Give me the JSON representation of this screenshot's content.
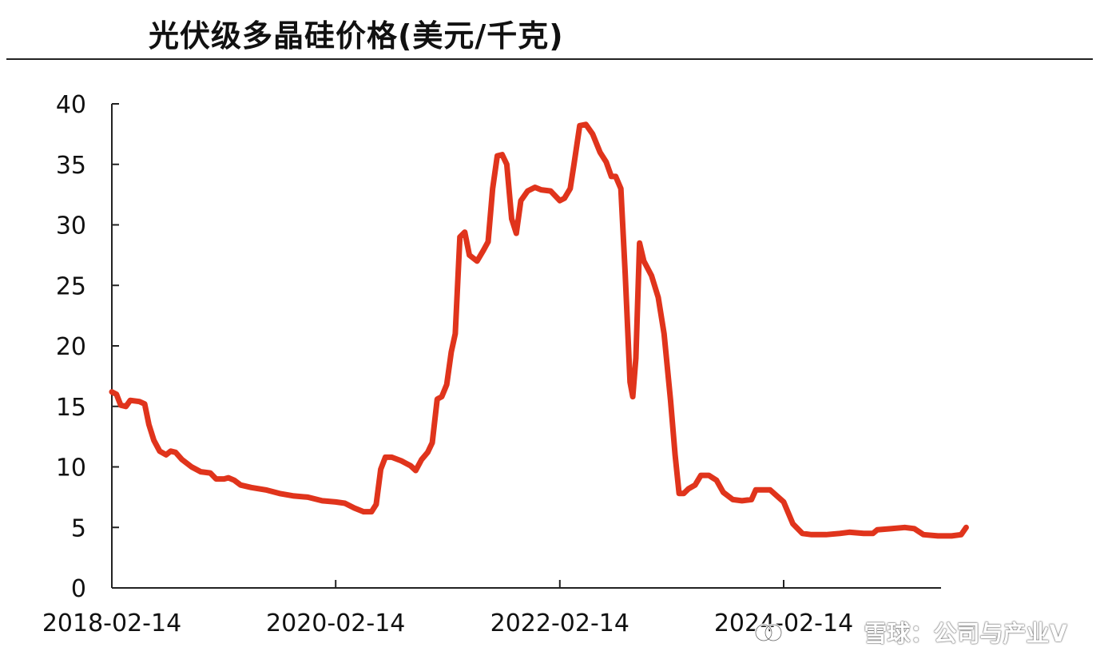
{
  "chart_data": {
    "type": "line",
    "title": "光伏级多晶硅价格(美元/千克)",
    "xlabel": "",
    "ylabel": "",
    "xlim": [
      "2018-02-14",
      "2025-10-01"
    ],
    "ylim": [
      0,
      40
    ],
    "y_ticks": [
      0,
      5,
      10,
      15,
      20,
      25,
      30,
      35,
      40
    ],
    "x_ticks": [
      "2018-02-14",
      "2020-02-14",
      "2022-02-14",
      "2024-02-14"
    ],
    "grid": false,
    "legend": "none",
    "color": "#e0341c",
    "series": [
      {
        "name": "",
        "points": [
          [
            "2018-02-14",
            16.2
          ],
          [
            "2018-03-01",
            16.0
          ],
          [
            "2018-03-15",
            15.1
          ],
          [
            "2018-04-01",
            15.0
          ],
          [
            "2018-04-15",
            15.5
          ],
          [
            "2018-05-15",
            15.4
          ],
          [
            "2018-06-01",
            15.2
          ],
          [
            "2018-06-15",
            13.5
          ],
          [
            "2018-07-01",
            12.2
          ],
          [
            "2018-07-20",
            11.3
          ],
          [
            "2018-08-10",
            11.0
          ],
          [
            "2018-08-25",
            11.3
          ],
          [
            "2018-09-10",
            11.2
          ],
          [
            "2018-10-01",
            10.6
          ],
          [
            "2018-11-01",
            10.0
          ],
          [
            "2018-12-01",
            9.6
          ],
          [
            "2019-01-01",
            9.5
          ],
          [
            "2019-01-20",
            9.0
          ],
          [
            "2019-02-15",
            9.0
          ],
          [
            "2019-03-01",
            9.1
          ],
          [
            "2019-03-20",
            8.9
          ],
          [
            "2019-04-10",
            8.5
          ],
          [
            "2019-05-15",
            8.3
          ],
          [
            "2019-07-01",
            8.1
          ],
          [
            "2019-08-15",
            7.8
          ],
          [
            "2019-10-01",
            7.6
          ],
          [
            "2019-11-15",
            7.5
          ],
          [
            "2020-01-01",
            7.2
          ],
          [
            "2020-02-14",
            7.1
          ],
          [
            "2020-03-15",
            7.0
          ],
          [
            "2020-04-15",
            6.6
          ],
          [
            "2020-05-15",
            6.3
          ],
          [
            "2020-06-10",
            6.3
          ],
          [
            "2020-06-25",
            6.9
          ],
          [
            "2020-07-10",
            9.8
          ],
          [
            "2020-07-25",
            10.8
          ],
          [
            "2020-08-15",
            10.8
          ],
          [
            "2020-09-15",
            10.5
          ],
          [
            "2020-10-15",
            10.1
          ],
          [
            "2020-11-01",
            9.7
          ],
          [
            "2020-11-20",
            10.6
          ],
          [
            "2020-12-10",
            11.2
          ],
          [
            "2020-12-25",
            12.0
          ],
          [
            "2021-01-10",
            15.6
          ],
          [
            "2021-01-25",
            15.8
          ],
          [
            "2021-02-10",
            16.8
          ],
          [
            "2021-02-25",
            19.5
          ],
          [
            "2021-03-10",
            21.0
          ],
          [
            "2021-03-25",
            29.0
          ],
          [
            "2021-04-10",
            29.4
          ],
          [
            "2021-04-25",
            27.5
          ],
          [
            "2021-05-20",
            27.0
          ],
          [
            "2021-06-10",
            27.9
          ],
          [
            "2021-06-25",
            28.6
          ],
          [
            "2021-07-10",
            33.0
          ],
          [
            "2021-07-25",
            35.7
          ],
          [
            "2021-08-10",
            35.8
          ],
          [
            "2021-08-25",
            35.0
          ],
          [
            "2021-09-10",
            30.5
          ],
          [
            "2021-09-25",
            29.3
          ],
          [
            "2021-10-10",
            32.0
          ],
          [
            "2021-11-01",
            32.8
          ],
          [
            "2021-11-25",
            33.1
          ],
          [
            "2021-12-15",
            32.9
          ],
          [
            "2022-01-15",
            32.8
          ],
          [
            "2022-02-14",
            32.0
          ],
          [
            "2022-03-01",
            32.2
          ],
          [
            "2022-03-20",
            33.0
          ],
          [
            "2022-04-01",
            35.0
          ],
          [
            "2022-04-20",
            38.2
          ],
          [
            "2022-05-10",
            38.3
          ],
          [
            "2022-06-01",
            37.5
          ],
          [
            "2022-06-25",
            36.0
          ],
          [
            "2022-07-15",
            35.2
          ],
          [
            "2022-08-01",
            34.0
          ],
          [
            "2022-08-15",
            34.0
          ],
          [
            "2022-09-01",
            33.0
          ],
          [
            "2022-09-15",
            26.0
          ],
          [
            "2022-10-01",
            17.0
          ],
          [
            "2022-10-10",
            15.8
          ],
          [
            "2022-10-20",
            19.0
          ],
          [
            "2022-11-01",
            28.5
          ],
          [
            "2022-11-15",
            27.0
          ],
          [
            "2022-12-10",
            25.8
          ],
          [
            "2023-01-01",
            24.0
          ],
          [
            "2023-01-20",
            21.0
          ],
          [
            "2023-02-10",
            15.5
          ],
          [
            "2023-02-25",
            11.0
          ],
          [
            "2023-03-10",
            7.8
          ],
          [
            "2023-03-25",
            7.8
          ],
          [
            "2023-04-10",
            8.2
          ],
          [
            "2023-05-01",
            8.5
          ],
          [
            "2023-05-20",
            9.3
          ],
          [
            "2023-06-15",
            9.3
          ],
          [
            "2023-07-10",
            8.9
          ],
          [
            "2023-08-01",
            7.9
          ],
          [
            "2023-09-01",
            7.3
          ],
          [
            "2023-10-01",
            7.2
          ],
          [
            "2023-11-01",
            7.3
          ],
          [
            "2023-11-15",
            8.1
          ],
          [
            "2024-01-01",
            8.1
          ],
          [
            "2024-02-14",
            7.1
          ],
          [
            "2024-03-15",
            5.3
          ],
          [
            "2024-04-15",
            4.5
          ],
          [
            "2024-05-15",
            4.4
          ],
          [
            "2024-07-01",
            4.4
          ],
          [
            "2024-08-15",
            4.5
          ],
          [
            "2024-09-15",
            4.6
          ],
          [
            "2024-11-01",
            4.5
          ],
          [
            "2024-12-01",
            4.5
          ],
          [
            "2024-12-15",
            4.8
          ],
          [
            "2025-02-01",
            4.9
          ],
          [
            "2025-03-15",
            5.0
          ],
          [
            "2025-04-15",
            4.9
          ],
          [
            "2025-05-15",
            4.4
          ],
          [
            "2025-07-01",
            4.3
          ],
          [
            "2025-08-15",
            4.3
          ],
          [
            "2025-09-15",
            4.4
          ],
          [
            "2025-10-01",
            5.0
          ]
        ]
      }
    ]
  },
  "watermark": {
    "text": "雪球：公司与产业V",
    "icon": "snowball-logo-icon"
  }
}
